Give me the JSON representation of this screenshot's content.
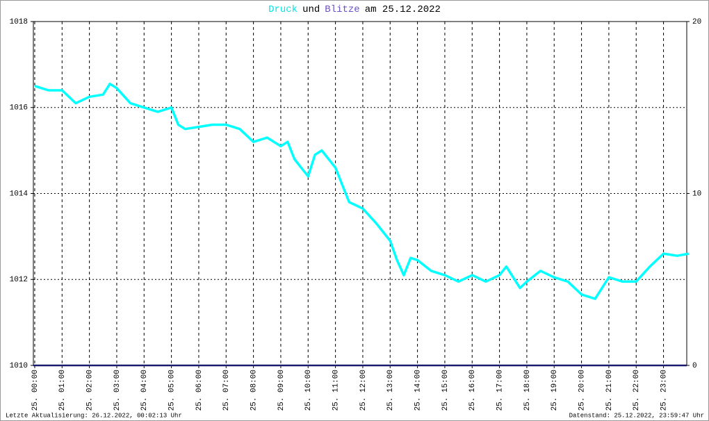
{
  "chart_data": {
    "type": "line",
    "title": [
      {
        "text": "Druck",
        "color": "#00e5e5"
      },
      {
        "text": "und",
        "color": "#000000"
      },
      {
        "text": "Blitze",
        "color": "#6a4fc8"
      },
      {
        "text": "am 25.12.2022",
        "color": "#000000"
      }
    ],
    "footer_left": "Letzte Aktualisierung: 26.12.2022, 00:02:13 Uhr",
    "footer_right": "Datenstand: 25.12.2022, 23:59:47 Uhr",
    "xlim": [
      -0.05,
      23.85
    ],
    "xticks": [
      {
        "value": 0,
        "label": "25. 00:00"
      },
      {
        "value": 1,
        "label": "25. 01:00"
      },
      {
        "value": 2,
        "label": "25. 02:00"
      },
      {
        "value": 3,
        "label": "25. 03:00"
      },
      {
        "value": 4,
        "label": "25. 04:00"
      },
      {
        "value": 5,
        "label": "25. 05:00"
      },
      {
        "value": 6,
        "label": "25. 06:00"
      },
      {
        "value": 7,
        "label": "25. 07:00"
      },
      {
        "value": 8,
        "label": "25. 08:00"
      },
      {
        "value": 9,
        "label": "25. 09:00"
      },
      {
        "value": 10,
        "label": "25. 10:00"
      },
      {
        "value": 11,
        "label": "25. 11:00"
      },
      {
        "value": 12,
        "label": "25. 12:00"
      },
      {
        "value": 13,
        "label": "25. 13:00"
      },
      {
        "value": 14,
        "label": "25. 14:00"
      },
      {
        "value": 15,
        "label": "25. 15:00"
      },
      {
        "value": 16,
        "label": "25. 16:00"
      },
      {
        "value": 17,
        "label": "25. 17:00"
      },
      {
        "value": 18,
        "label": "25. 18:00"
      },
      {
        "value": 19,
        "label": "25. 19:00"
      },
      {
        "value": 20,
        "label": "25. 20:00"
      },
      {
        "value": 21,
        "label": "25. 21:00"
      },
      {
        "value": 22,
        "label": "25. 22:00"
      },
      {
        "value": 23,
        "label": "25. 23:00"
      }
    ],
    "ylim": [
      1010,
      1018
    ],
    "yticks": [
      1010,
      1012,
      1014,
      1016,
      1018
    ],
    "y2lim": [
      0,
      20
    ],
    "y2ticks": [
      0,
      10,
      20
    ],
    "grid": true,
    "series": [
      {
        "name": "Druck",
        "color": "#00ffff",
        "x": [
          0,
          0.5,
          1,
          1.5,
          2,
          2.5,
          2.75,
          3,
          3.5,
          4,
          4.5,
          5,
          5.25,
          5.5,
          6,
          6.5,
          7,
          7.5,
          8,
          8.5,
          9,
          9.25,
          9.5,
          9.75,
          10,
          10.25,
          10.5,
          10.75,
          11,
          11.25,
          11.5,
          12,
          12.5,
          13,
          13.25,
          13.5,
          13.75,
          14,
          14.5,
          15,
          15.5,
          16,
          16.5,
          17,
          17.25,
          17.75,
          18,
          18.5,
          19,
          19.5,
          20,
          20.5,
          20.75,
          21,
          21.5,
          22,
          22.5,
          23,
          23.5,
          23.92
        ],
        "values": [
          1016.5,
          1016.4,
          1016.4,
          1016.1,
          1016.25,
          1016.3,
          1016.55,
          1016.45,
          1016.1,
          1016.0,
          1015.9,
          1016.0,
          1015.6,
          1015.5,
          1015.55,
          1015.6,
          1015.6,
          1015.5,
          1015.2,
          1015.3,
          1015.1,
          1015.2,
          1014.8,
          1014.6,
          1014.4,
          1014.9,
          1015.0,
          1014.8,
          1014.6,
          1014.2,
          1013.8,
          1013.65,
          1013.3,
          1012.9,
          1012.45,
          1012.1,
          1012.5,
          1012.45,
          1012.2,
          1012.1,
          1011.95,
          1012.1,
          1011.95,
          1012.1,
          1012.3,
          1011.8,
          1011.95,
          1012.2,
          1012.05,
          1011.95,
          1011.65,
          1011.55,
          1011.8,
          1012.05,
          1011.95,
          1011.95,
          1012.3,
          1012.6,
          1012.55,
          1012.6
        ]
      },
      {
        "name": "Blitze",
        "color": "#1a1a6e",
        "axis": "y2",
        "x": [
          -0.05,
          23.85
        ],
        "values": [
          0,
          0
        ]
      }
    ]
  }
}
